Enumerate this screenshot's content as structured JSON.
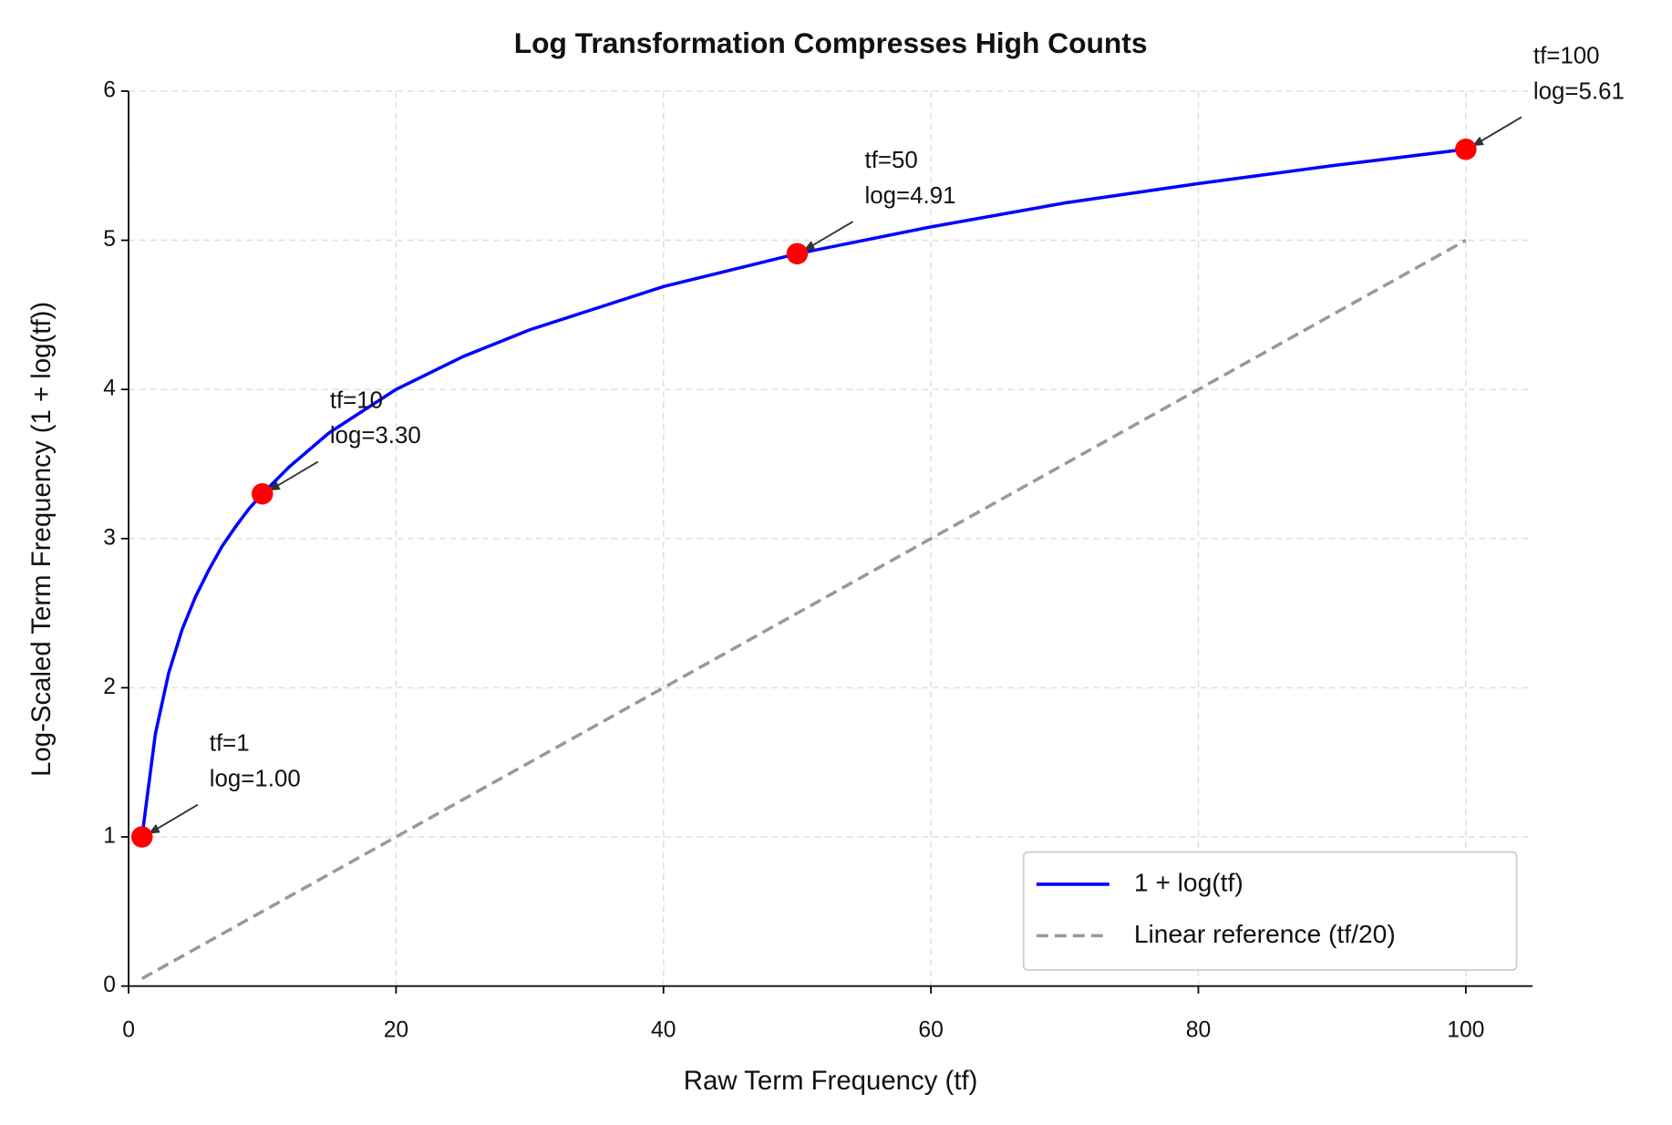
{
  "chart_data": {
    "type": "line",
    "title": "Log Transformation Compresses High Counts",
    "xlabel": "Raw Term Frequency (tf)",
    "ylabel": "Log-Scaled Term Frequency (1 + log(tf))",
    "xlim": [
      0,
      105
    ],
    "ylim": [
      0,
      6
    ],
    "xticks": [
      0,
      20,
      40,
      60,
      80,
      100
    ],
    "yticks": [
      0,
      1,
      2,
      3,
      4,
      5,
      6
    ],
    "grid": true,
    "legend": "lower right",
    "series": [
      {
        "name": "1 + log(tf)",
        "color": "#0000ff",
        "x": [
          1,
          2,
          3,
          4,
          5,
          6,
          7,
          8,
          9,
          10,
          12,
          15,
          20,
          25,
          30,
          40,
          50,
          60,
          70,
          80,
          90,
          100
        ],
        "values": [
          1,
          1.69,
          2.1,
          2.39,
          2.61,
          2.79,
          2.95,
          3.08,
          3.2,
          3.3,
          3.48,
          3.71,
          4.0,
          4.22,
          4.4,
          4.69,
          4.91,
          5.09,
          5.25,
          5.38,
          5.5,
          5.61
        ]
      },
      {
        "name": "Linear reference (tf/20)",
        "color": "#999999",
        "dashed": true,
        "x": [
          1,
          100
        ],
        "values": [
          0.05,
          5
        ]
      }
    ],
    "points": {
      "color": "#ff0000",
      "x": [
        1,
        10,
        50,
        100
      ],
      "values": [
        1,
        3.3,
        4.91,
        5.61
      ]
    },
    "annotations": [
      [
        "tf=1",
        "log=1.00"
      ],
      [
        "tf=10",
        "log=3.30"
      ],
      [
        "tf=50",
        "log=4.91"
      ],
      [
        "tf=100",
        "log=5.61"
      ]
    ]
  }
}
